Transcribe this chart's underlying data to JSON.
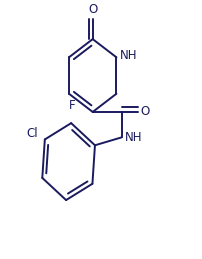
{
  "bg_color": "#ffffff",
  "bond_color": "#1a1a5e",
  "bond_width": 1.4,
  "font_color": "#1a1a5e",
  "font_size": 8.5,
  "xlim": [
    -0.05,
    1.15
  ],
  "ylim": [
    -0.08,
    1.05
  ]
}
